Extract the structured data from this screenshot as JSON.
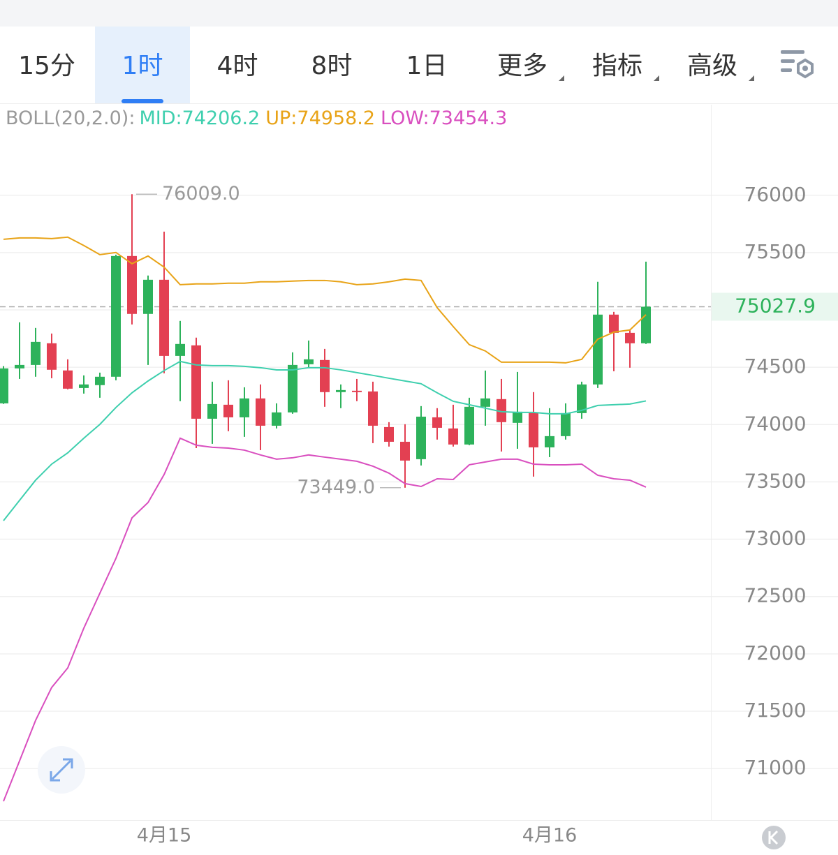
{
  "tabs": [
    "15分",
    "1时",
    "4时",
    "8时",
    "1日",
    "更多",
    "指标",
    "高级"
  ],
  "selected_tab": 1,
  "chart_data": {
    "type": "candlestick",
    "indicator": "BOLL(20,2.0):",
    "categories": [
      null,
      null,
      null,
      null,
      null,
      null,
      null,
      null,
      null,
      null,
      "4月15",
      null,
      null,
      null,
      null,
      null,
      null,
      null,
      null,
      null,
      null,
      null,
      null,
      null,
      null,
      null,
      null,
      null,
      null,
      null,
      null,
      null,
      null,
      null,
      "4月16",
      null,
      null,
      null,
      null,
      null,
      null
    ],
    "open": [
      74185,
      74490,
      74520,
      74709,
      74472,
      74319,
      74344,
      74417,
      75470,
      74965,
      75263,
      74599,
      74691,
      74051,
      74173,
      74063,
      74228,
      73990,
      74106,
      74526,
      74563,
      74283,
      74295,
      74289,
      73978,
      73850,
      73698,
      74063,
      73966,
      73826,
      74155,
      74222,
      74015,
      74100,
      73801,
      73899,
      74100,
      74350,
      74959,
      74800,
      74709
    ],
    "high": [
      74510,
      74892,
      74843,
      74794,
      74569,
      74429,
      74453,
      75482,
      76009,
      75300,
      75683,
      74904,
      74758,
      74374,
      74386,
      74325,
      74350,
      74185,
      74630,
      74733,
      74660,
      74350,
      74398,
      74374,
      74021,
      74003,
      74161,
      74143,
      74173,
      74234,
      74471,
      74398,
      74459,
      74283,
      74143,
      74185,
      74374,
      75245,
      74983,
      74831,
      75421
    ],
    "low": [
      74180,
      74398,
      74417,
      74404,
      74307,
      74270,
      74234,
      74386,
      74873,
      74520,
      74447,
      74204,
      73795,
      73832,
      73942,
      73893,
      73777,
      73966,
      74094,
      74496,
      74155,
      74143,
      74204,
      73838,
      73808,
      73449,
      73643,
      73869,
      73808,
      73820,
      73990,
      73765,
      73789,
      73546,
      73716,
      73869,
      74051,
      74319,
      74465,
      74496,
      74703
    ],
    "close": [
      74490,
      74520,
      74721,
      74478,
      74313,
      74350,
      74417,
      75470,
      74965,
      75263,
      74599,
      74703,
      74051,
      74179,
      74063,
      74228,
      73990,
      74106,
      74520,
      74569,
      74283,
      74301,
      74283,
      73990,
      73850,
      73686,
      74069,
      73972,
      73826,
      74155,
      74228,
      74021,
      74112,
      73801,
      73899,
      74100,
      74350,
      74959,
      74800,
      74709,
      75027.9
    ],
    "up_color": "#2db25b",
    "down_color": "#e34052",
    "series": [
      {
        "name": "MID:74206.2",
        "color": "#3ecfae",
        "values": [
          73162,
          73339,
          73515,
          73655,
          73753,
          73881,
          74002,
          74149,
          74277,
          74380,
          74471,
          74551,
          74520,
          74514,
          74514,
          74508,
          74496,
          74477,
          74477,
          74496,
          74496,
          74477,
          74453,
          74429,
          74404,
          74380,
          74356,
          74277,
          74203,
          74173,
          74143,
          74112,
          74106,
          74106,
          74094,
          74094,
          74124,
          74167,
          74173,
          74179,
          74206.2
        ]
      },
      {
        "name": "UP:74958.2",
        "color": "#e8a317",
        "values": [
          75616,
          75628,
          75628,
          75622,
          75635,
          75562,
          75482,
          75501,
          75403,
          75470,
          75373,
          75220,
          75227,
          75227,
          75233,
          75233,
          75245,
          75245,
          75251,
          75257,
          75257,
          75245,
          75220,
          75227,
          75245,
          75269,
          75257,
          75020,
          74855,
          74697,
          74642,
          74544,
          74544,
          74544,
          74544,
          74538,
          74569,
          74745,
          74806,
          74825,
          74958.2
        ]
      },
      {
        "name": "LOW:73454.3",
        "color": "#d94fbf",
        "values": [
          70714,
          71067,
          71420,
          71707,
          71877,
          72224,
          72529,
          72833,
          73186,
          73320,
          73564,
          73881,
          73820,
          73802,
          73795,
          73777,
          73735,
          73698,
          73710,
          73735,
          73716,
          73698,
          73680,
          73637,
          73576,
          73485,
          73460,
          73527,
          73521,
          73649,
          73674,
          73698,
          73698,
          73655,
          73649,
          73649,
          73655,
          73558,
          73527,
          73515,
          73454.3
        ]
      }
    ],
    "annotations": [
      {
        "value": 76009,
        "label": "76009.0"
      },
      {
        "value": 73449,
        "label": "73449.0"
      }
    ],
    "last_price": 75027.9,
    "ylim": [
      70550,
      76790
    ],
    "yticks": [
      71000,
      71500,
      72000,
      72500,
      73000,
      73500,
      74000,
      74500,
      75000,
      75500,
      76000
    ],
    "grid": true
  }
}
